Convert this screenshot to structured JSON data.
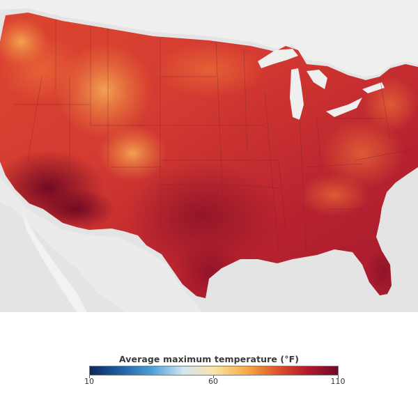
{
  "map": {
    "colors": {
      "background": "#e4e4e4",
      "land_outside": "#efefef",
      "water": "#e4e4e4",
      "border": "#7a2530"
    },
    "regions": [
      {
        "name": "desert-southwest",
        "color": "#7a0a22",
        "value_f": 105
      },
      {
        "name": "south-central",
        "color": "#9a1a2a",
        "value_f": 100
      },
      {
        "name": "mountain-highlands",
        "color": "#f4a04a",
        "value_f": 72
      }
    ]
  },
  "legend": {
    "title": "Average maximum temperature (°F)",
    "min_label": "10",
    "mid_label": "60",
    "max_label": "110",
    "scale": {
      "min": 10,
      "max": 110,
      "ticks": [
        10,
        60,
        110
      ]
    },
    "gradient_colors": [
      "#0b2a5a",
      "#1f5fa8",
      "#4aa0d8",
      "#cfe6f2",
      "#fbe3a6",
      "#f6b047",
      "#e0572b",
      "#b3192d",
      "#6e0a2a"
    ]
  }
}
